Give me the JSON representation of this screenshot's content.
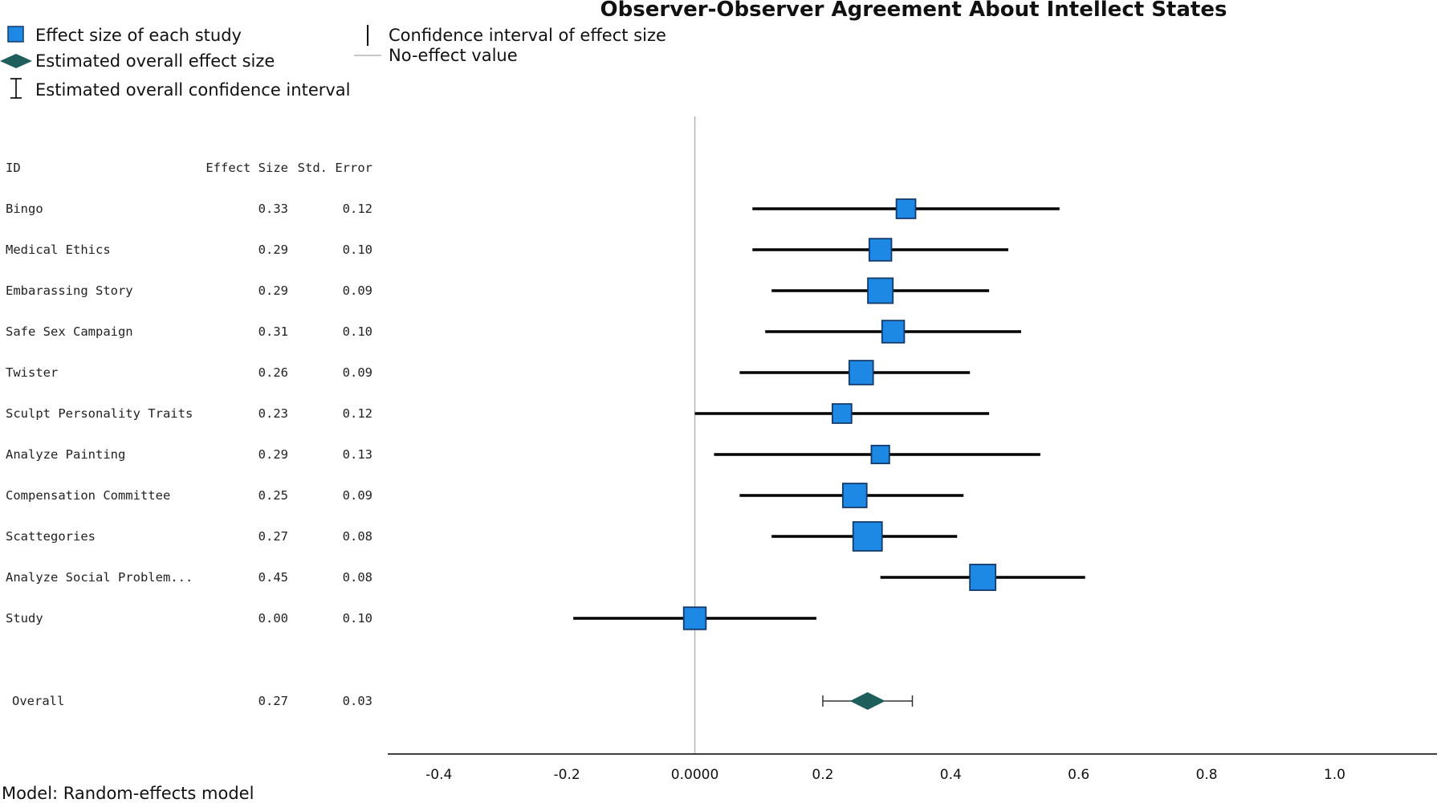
{
  "chart_data": {
    "type": "forest",
    "title": "Observer-Observer Agreement About Intellect States",
    "legend": {
      "effect_size": "Effect size of each study",
      "overall_effect": "Estimated overall effect size",
      "overall_ci": "Estimated overall confidence interval",
      "ci": "Confidence interval of effect size",
      "no_effect": "No-effect value"
    },
    "columns": [
      "ID",
      "Effect Size",
      "Std. Error"
    ],
    "studies": [
      {
        "id": "Bingo",
        "effect_size": "0.33",
        "std_error": "0.12",
        "es": 0.33,
        "ci": [
          0.09,
          0.57
        ],
        "weight": 0.45
      },
      {
        "id": "Medical Ethics",
        "effect_size": "0.29",
        "std_error": "0.10",
        "es": 0.29,
        "ci": [
          0.09,
          0.49
        ],
        "weight": 0.62
      },
      {
        "id": "Embarassing Story",
        "effect_size": "0.29",
        "std_error": "0.09",
        "es": 0.29,
        "ci": [
          0.12,
          0.46
        ],
        "weight": 0.78
      },
      {
        "id": "Safe Sex Campaign",
        "effect_size": "0.31",
        "std_error": "0.10",
        "es": 0.31,
        "ci": [
          0.11,
          0.51
        ],
        "weight": 0.62
      },
      {
        "id": "Twister",
        "effect_size": "0.26",
        "std_error": "0.09",
        "es": 0.26,
        "ci": [
          0.07,
          0.43
        ],
        "weight": 0.72
      },
      {
        "id": "Sculpt Personality Traits",
        "effect_size": "0.23",
        "std_error": "0.12",
        "es": 0.23,
        "ci": [
          0.0,
          0.46
        ],
        "weight": 0.45
      },
      {
        "id": "Analyze Painting",
        "effect_size": "0.29",
        "std_error": "0.13",
        "es": 0.29,
        "ci": [
          0.03,
          0.54
        ],
        "weight": 0.38
      },
      {
        "id": "Compensation Committee",
        "effect_size": "0.25",
        "std_error": "0.09",
        "es": 0.25,
        "ci": [
          0.07,
          0.42
        ],
        "weight": 0.72
      },
      {
        "id": "Scattegories",
        "effect_size": "0.27",
        "std_error": "0.08",
        "es": 0.27,
        "ci": [
          0.12,
          0.41
        ],
        "weight": 1.0
      },
      {
        "id": "Analyze Social Problem...",
        "effect_size": "0.45",
        "std_error": "0.08",
        "es": 0.45,
        "ci": [
          0.29,
          0.61
        ],
        "weight": 0.82
      },
      {
        "id": "Study",
        "effect_size": "0.00",
        "std_error": "0.10",
        "es": 0.0,
        "ci": [
          -0.19,
          0.19
        ],
        "weight": 0.62
      }
    ],
    "overall": {
      "id": "Overall",
      "effect_size": "0.27",
      "std_error": "0.03",
      "es": 0.27,
      "ci": [
        0.2,
        0.34
      ]
    },
    "xlim": [
      -0.48,
      1.16
    ],
    "xticks": [
      -0.4,
      -0.2,
      0.0,
      0.2,
      0.4,
      0.6,
      0.8,
      1.0
    ],
    "xtick_labels": [
      "-0.4",
      "-0.2",
      "0.0000",
      "0.2",
      "0.4",
      "0.6",
      "0.8",
      "1.0"
    ],
    "no_effect_value": 0.0,
    "footer": "Model: Random-effects model",
    "colors": {
      "square": "#1e88e5",
      "square_stroke": "#123a6b",
      "diamond": "#1f5f5b",
      "line": "#000000",
      "ref": "#b5b5b5"
    }
  }
}
